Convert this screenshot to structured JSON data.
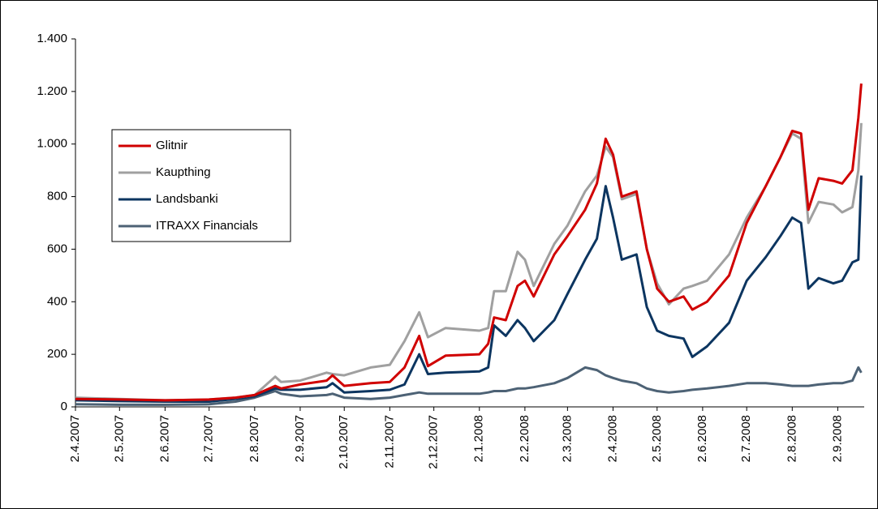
{
  "chart_data": {
    "type": "line",
    "x": [
      "2007-04-02",
      "2007-05-02",
      "2007-06-02",
      "2007-07-02",
      "2007-07-20",
      "2007-08-02",
      "2007-08-16",
      "2007-08-20",
      "2007-09-02",
      "2007-09-20",
      "2007-09-24",
      "2007-10-02",
      "2007-10-20",
      "2007-11-02",
      "2007-11-12",
      "2007-11-22",
      "2007-11-28",
      "2007-12-10",
      "2008-01-02",
      "2008-01-08",
      "2008-01-12",
      "2008-01-20",
      "2008-01-28",
      "2008-02-02",
      "2008-02-08",
      "2008-02-22",
      "2008-03-02",
      "2008-03-14",
      "2008-03-22",
      "2008-03-28",
      "2008-04-02",
      "2008-04-08",
      "2008-04-18",
      "2008-04-25",
      "2008-05-02",
      "2008-05-10",
      "2008-05-20",
      "2008-05-26",
      "2008-06-05",
      "2008-06-20",
      "2008-07-02",
      "2008-07-15",
      "2008-07-25",
      "2008-08-02",
      "2008-08-08",
      "2008-08-13",
      "2008-08-20",
      "2008-08-30",
      "2008-09-05",
      "2008-09-12",
      "2008-09-16",
      "2008-09-18"
    ],
    "series": [
      {
        "name": "Glitnir",
        "color": "#d00000",
        "values": [
          30,
          28,
          25,
          28,
          35,
          45,
          80,
          70,
          85,
          100,
          120,
          80,
          90,
          95,
          150,
          270,
          155,
          195,
          200,
          240,
          340,
          330,
          460,
          480,
          420,
          580,
          650,
          750,
          850,
          1020,
          960,
          800,
          820,
          600,
          450,
          400,
          420,
          370,
          400,
          500,
          700,
          840,
          950,
          1050,
          1040,
          750,
          870,
          860,
          850,
          900,
          1100,
          1230
        ]
      },
      {
        "name": "Kaupthing",
        "color": "#a0a0a0",
        "values": [
          35,
          30,
          25,
          28,
          35,
          45,
          115,
          95,
          100,
          130,
          125,
          120,
          150,
          160,
          250,
          360,
          265,
          300,
          290,
          300,
          440,
          440,
          590,
          560,
          460,
          620,
          690,
          820,
          880,
          990,
          950,
          790,
          810,
          600,
          470,
          390,
          450,
          460,
          480,
          580,
          720,
          840,
          950,
          1040,
          1020,
          700,
          780,
          770,
          740,
          760,
          900,
          1080
        ]
      },
      {
        "name": "Landsbanki",
        "color": "#0c3560",
        "values": [
          25,
          22,
          20,
          20,
          30,
          40,
          70,
          65,
          65,
          75,
          90,
          55,
          60,
          65,
          85,
          200,
          125,
          130,
          135,
          150,
          310,
          270,
          330,
          300,
          250,
          330,
          430,
          560,
          640,
          840,
          720,
          560,
          580,
          380,
          290,
          270,
          260,
          190,
          230,
          320,
          480,
          570,
          650,
          720,
          700,
          450,
          490,
          470,
          480,
          550,
          560,
          880
        ]
      },
      {
        "name": "ITRAXX Financials",
        "color": "#4d6275",
        "values": [
          10,
          8,
          8,
          10,
          20,
          35,
          60,
          50,
          40,
          45,
          50,
          35,
          30,
          35,
          45,
          55,
          50,
          50,
          50,
          55,
          60,
          60,
          70,
          70,
          75,
          90,
          110,
          150,
          140,
          120,
          110,
          100,
          90,
          70,
          60,
          55,
          60,
          65,
          70,
          80,
          90,
          90,
          85,
          80,
          80,
          80,
          85,
          90,
          90,
          100,
          150,
          130
        ]
      }
    ],
    "xlim": [
      "2007-04-02",
      "2008-09-20"
    ],
    "xticks": [
      {
        "value": "2007-04-02",
        "label": "2.4.2007"
      },
      {
        "value": "2007-05-02",
        "label": "2.5.2007"
      },
      {
        "value": "2007-06-02",
        "label": "2.6.2007"
      },
      {
        "value": "2007-07-02",
        "label": "2.7.2007"
      },
      {
        "value": "2007-08-02",
        "label": "2.8.2007"
      },
      {
        "value": "2007-09-02",
        "label": "2.9.2007"
      },
      {
        "value": "2007-10-02",
        "label": "2.10.2007"
      },
      {
        "value": "2007-11-02",
        "label": "2.11.2007"
      },
      {
        "value": "2007-12-02",
        "label": "2.12.2007"
      },
      {
        "value": "2008-01-02",
        "label": "2.1.2008"
      },
      {
        "value": "2008-02-02",
        "label": "2.2.2008"
      },
      {
        "value": "2008-03-02",
        "label": "2.3.2008"
      },
      {
        "value": "2008-04-02",
        "label": "2.4.2008"
      },
      {
        "value": "2008-05-02",
        "label": "2.5.2008"
      },
      {
        "value": "2008-06-02",
        "label": "2.6.2008"
      },
      {
        "value": "2008-07-02",
        "label": "2.7.2008"
      },
      {
        "value": "2008-08-02",
        "label": "2.8.2008"
      },
      {
        "value": "2008-09-02",
        "label": "2.9.2008"
      }
    ],
    "ylim": [
      0,
      1400
    ],
    "yticks": [
      0,
      200,
      400,
      600,
      800,
      {
        "value": 1000,
        "label": "1.000"
      },
      {
        "value": 1200,
        "label": "1.200"
      },
      {
        "value": 1400,
        "label": "1.400"
      }
    ],
    "legend": "left"
  }
}
